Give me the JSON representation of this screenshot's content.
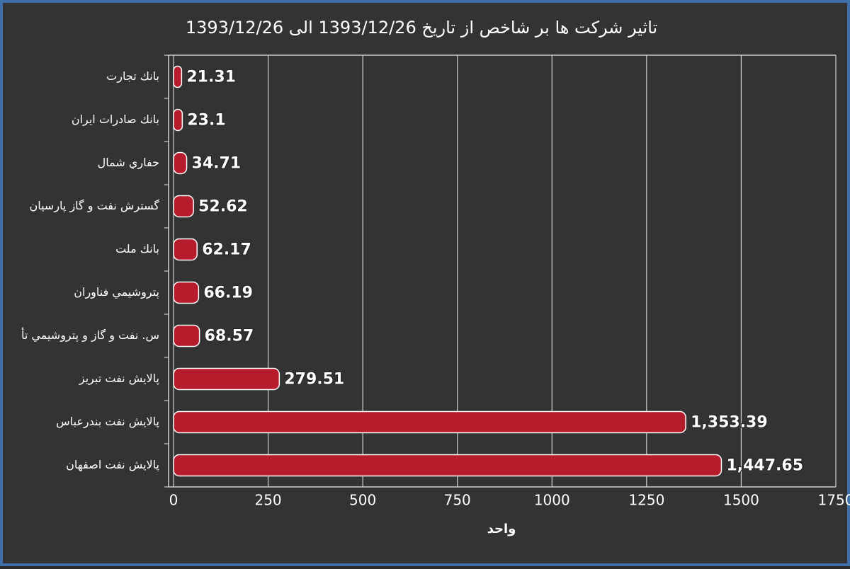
{
  "chart_data": {
    "type": "bar",
    "orientation": "horizontal",
    "title": "تاثیر شرکت ها بر شاخص از تاریخ 1393/12/26 الی 1393/12/26",
    "x_label": "واحد",
    "categories": [
      "بانك تجارت",
      "بانك صادرات ايران",
      "حفاري شمال",
      "گسترش نفت و گاز پارسيان",
      "بانك ملت",
      "پتروشيمي فناوران",
      "س. نفت و گاز و پتروشيمي تأ",
      "پالايش نفت تبريز",
      "پالايش نفت بندرعباس",
      "پالايش نفت اصفهان"
    ],
    "values": [
      21.31,
      23.1,
      34.71,
      52.62,
      62.17,
      66.19,
      68.57,
      279.51,
      1353.39,
      1447.65
    ],
    "value_labels": [
      "21.31",
      "23.1",
      "34.71",
      "52.62",
      "62.17",
      "66.19",
      "68.57",
      "279.51",
      "1,353.39",
      "1,447.65"
    ],
    "color": "#b71c2c",
    "xlim": [
      0,
      1750
    ],
    "xticks": [
      0,
      250,
      500,
      750,
      1000,
      1250,
      1500,
      1750
    ],
    "grid": true
  }
}
